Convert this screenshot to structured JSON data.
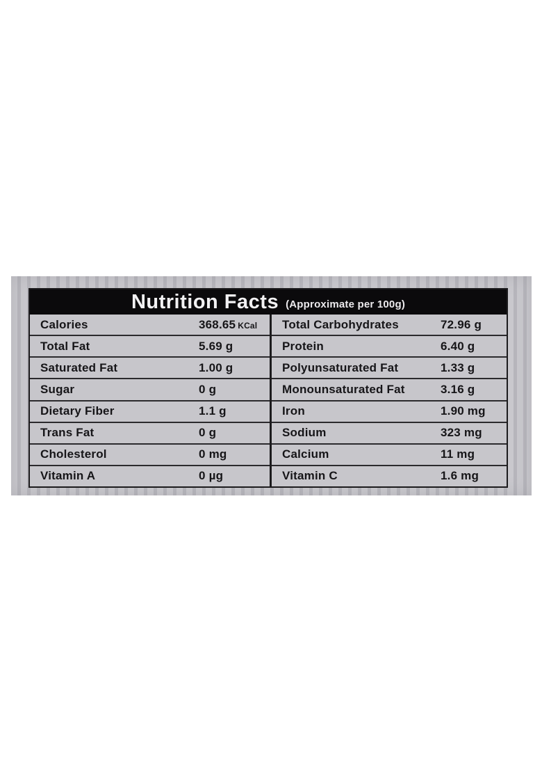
{
  "label": {
    "title": "Nutrition Facts",
    "subtitle": "(Approximate per 100g)",
    "rows_left": [
      {
        "name": "Calories",
        "value": "368.65",
        "unit_small": "KCal"
      },
      {
        "name": "Total Fat",
        "value": "5.69 g"
      },
      {
        "name": "Saturated Fat",
        "value": "1.00 g"
      },
      {
        "name": "Sugar",
        "value": "0 g"
      },
      {
        "name": "Dietary Fiber",
        "value": "1.1 g"
      },
      {
        "name": "Trans Fat",
        "value": "0 g"
      },
      {
        "name": "Cholesterol",
        "value": "0 mg"
      },
      {
        "name": "Vitamin A",
        "value": "0 µg"
      }
    ],
    "rows_right": [
      {
        "name": "Total Carbohydrates",
        "value": "72.96 g"
      },
      {
        "name": "Protein",
        "value": "6.40 g"
      },
      {
        "name": "Polyunsaturated Fat",
        "value": "1.33 g"
      },
      {
        "name": "Monounsaturated Fat",
        "value": "3.16 g"
      },
      {
        "name": "Iron",
        "value": "1.90 mg"
      },
      {
        "name": "Sodium",
        "value": "323 mg"
      },
      {
        "name": "Calcium",
        "value": "11 mg"
      },
      {
        "name": "Vitamin C",
        "value": "1.6 mg"
      }
    ]
  },
  "colors": {
    "page_background": "#ffffff",
    "package_stripe_light": "#c9c8cd",
    "package_stripe_dark": "#b7b6bc",
    "label_background": "#c7c6cb",
    "header_background": "#0b0a0c",
    "border": "#1c1b1d",
    "text": "#161518",
    "header_text": "#f2f1f3"
  }
}
